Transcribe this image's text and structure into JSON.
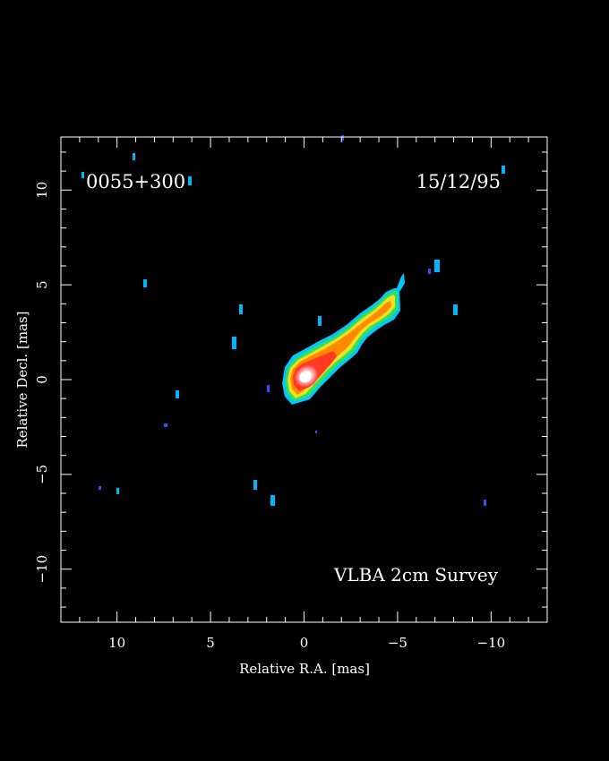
{
  "plot": {
    "source_name": "0055+300",
    "date": "15/12/95",
    "survey_label": "VLBA 2cm Survey",
    "x_axis": {
      "label": "Relative R.A. [mas]",
      "range": [
        13,
        -13
      ],
      "ticks": [
        {
          "value": 10,
          "label": "10"
        },
        {
          "value": 5,
          "label": "5"
        },
        {
          "value": 0,
          "label": "0"
        },
        {
          "value": -5,
          "label": "−5"
        },
        {
          "value": -10,
          "label": "−10"
        }
      ]
    },
    "y_axis": {
      "label": "Relative Decl. [mas]",
      "range": [
        -12.8,
        12.8
      ],
      "ticks": [
        {
          "value": 10,
          "label": "10"
        },
        {
          "value": 5,
          "label": "5"
        },
        {
          "value": 0,
          "label": "0"
        },
        {
          "value": -5,
          "label": "−5"
        },
        {
          "value": -10,
          "label": "−10"
        }
      ]
    },
    "colors": {
      "background": "#000000",
      "frame": "#ffffff",
      "contour_outer": "#00c8ff",
      "contour_green": "#30e060",
      "contour_yellow": "#f0e020",
      "contour_orange": "#ff8a00",
      "contour_red": "#ff3020",
      "core_peak": "#ffffff",
      "noise": "#00b4ff",
      "noise_dim": "#3050ff"
    }
  }
}
